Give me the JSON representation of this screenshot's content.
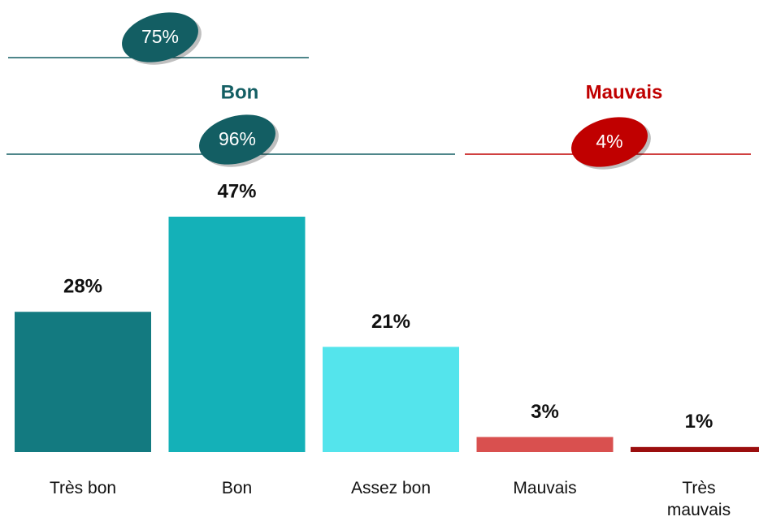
{
  "chart_data": {
    "type": "bar",
    "categories": [
      "Très bon",
      "Bon",
      "Assez bon",
      "Mauvais",
      "Très\nmauvais"
    ],
    "values": [
      28,
      47,
      21,
      3,
      1
    ],
    "value_labels": [
      "28%",
      "47%",
      "21%",
      "3%",
      "1%"
    ],
    "colors": [
      "#137a80",
      "#14b1b8",
      "#54e4ec",
      "#d9504f",
      "#9b0e0e"
    ],
    "groups": [
      {
        "value": 75,
        "label": "75%",
        "color": "#135e63"
      },
      {
        "name": "Bon",
        "value": 96,
        "label": "96%",
        "color": "#135e63"
      },
      {
        "name": "Mauvais",
        "value": 4,
        "label": "4%",
        "color": "#c00000"
      }
    ]
  }
}
